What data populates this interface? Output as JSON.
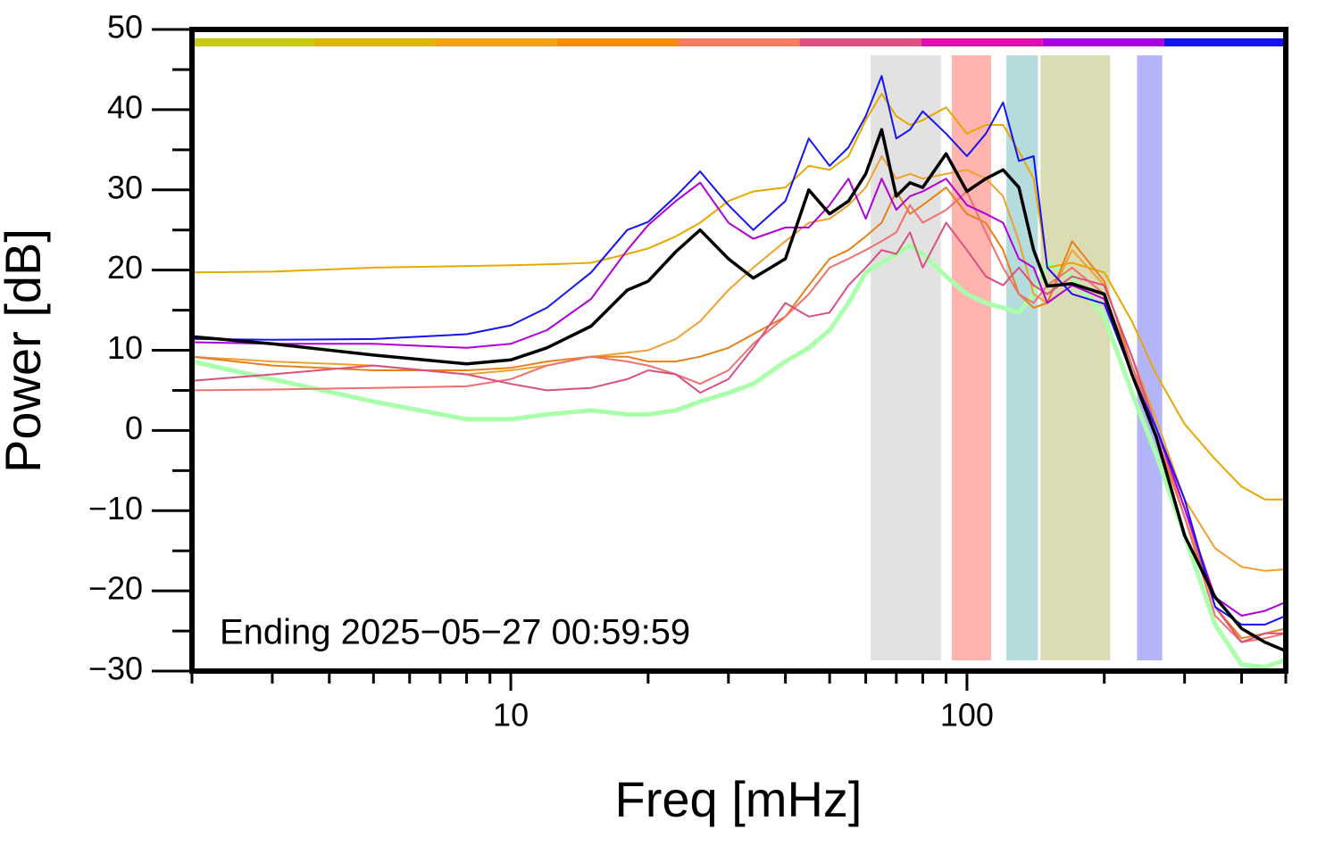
{
  "chart_data": {
    "type": "line",
    "x_label": "Freq [mHz]",
    "y_label": "Power [dB]",
    "annotation": "Ending 2025−05−27 00:59:59",
    "log_x": true,
    "xlim": [
      2,
      500
    ],
    "xticks": [
      10,
      100
    ],
    "xminor_ticks": [
      2,
      3,
      4,
      5,
      6,
      7,
      8,
      9,
      20,
      30,
      40,
      50,
      60,
      70,
      80,
      90,
      200,
      300,
      400,
      500
    ],
    "ylim": [
      -30,
      50
    ],
    "yticks": [
      {
        "value": -30,
        "label": "−30"
      },
      {
        "value": -20,
        "label": "−20"
      },
      {
        "value": -10,
        "label": "−10"
      },
      0,
      10,
      20,
      30,
      40,
      50
    ],
    "yminor_ticks": [
      -25,
      -15,
      -5,
      5,
      15,
      25,
      35,
      45
    ],
    "color_bar": [
      "#c8cc10",
      "#dcb40c",
      "#f0a01a",
      "#f58c10",
      "#fa7a60",
      "#dc5080",
      "#dc10b0",
      "#a800dc",
      "#1414f0"
    ],
    "bands": [
      {
        "x": [
          61.5,
          87.7
        ],
        "color": "#e2e2e2"
      },
      {
        "x": [
          92.6,
          113
        ],
        "color": "#ffb4b0"
      },
      {
        "x": [
          122,
          143
        ],
        "color": "#b4dcdc"
      },
      {
        "x": [
          145,
          206
        ],
        "color": "#dcdcb4"
      },
      {
        "x": [
          236,
          268
        ],
        "color": "#b4b4fa"
      }
    ],
    "x": [
      2,
      3,
      5,
      8,
      10,
      12,
      15,
      18,
      20,
      23,
      26,
      30,
      34,
      40,
      45,
      50,
      55,
      60,
      65,
      70,
      75,
      80,
      90,
      100,
      110,
      120,
      130,
      140,
      150,
      170,
      200,
      230,
      260,
      300,
      350,
      400,
      450,
      500
    ],
    "series": [
      {
        "color": "#aaffaa",
        "width": 5,
        "values": [
          8.6,
          6.4,
          3.6,
          1.4,
          1.4,
          2.0,
          2.5,
          2.0,
          2.0,
          2.5,
          3.6,
          4.7,
          5.8,
          8.6,
          10.3,
          12.5,
          15.9,
          19.7,
          20.9,
          22.0,
          23.1,
          22.0,
          19.2,
          17.0,
          15.9,
          15.3,
          14.7,
          17.0,
          20.9,
          19.2,
          14.2,
          4.7,
          -3.0,
          -13.1,
          -24.2,
          -29.2,
          -29.5,
          -28.6
        ]
      },
      {
        "color": "#e8a800",
        "width": 2,
        "values": [
          19.7,
          19.8,
          20.3,
          20.5,
          20.6,
          20.7,
          20.9,
          22.0,
          22.7,
          24.2,
          25.9,
          28.6,
          29.8,
          30.3,
          33.0,
          32.5,
          34.2,
          38.7,
          42.0,
          39.2,
          38.1,
          38.7,
          40.3,
          37.0,
          38.1,
          38.1,
          34.8,
          31.4,
          20.3,
          20.9,
          19.7,
          13.6,
          7.0,
          0.8,
          -3.6,
          -7.0,
          -8.6,
          -8.6
        ]
      },
      {
        "color": "#f0a030",
        "width": 2,
        "values": [
          9.2,
          8.6,
          8.1,
          7.0,
          7.5,
          8.1,
          9.2,
          9.7,
          10.0,
          11.4,
          13.6,
          17.5,
          20.3,
          23.6,
          25.9,
          26.4,
          28.1,
          30.3,
          34.2,
          31.4,
          32.0,
          31.4,
          32.0,
          32.5,
          31.4,
          29.2,
          23.6,
          17.0,
          15.9,
          22.5,
          18.1,
          9.2,
          1.4,
          -8.6,
          -14.7,
          -17.0,
          -17.5,
          -17.3
        ]
      },
      {
        "color": "#e8801a",
        "width": 2,
        "values": [
          9.2,
          8.1,
          7.5,
          7.5,
          7.8,
          8.6,
          9.2,
          9.2,
          8.6,
          8.6,
          9.2,
          10.3,
          12.0,
          14.2,
          18.1,
          21.4,
          22.5,
          24.2,
          25.9,
          29.8,
          27.0,
          28.1,
          30.3,
          27.0,
          25.9,
          22.5,
          17.0,
          15.3,
          15.9,
          23.6,
          18.6,
          8.1,
          -0.8,
          -10.8,
          -22.0,
          -25.9,
          -25.3,
          -24.7
        ]
      },
      {
        "color": "#f07070",
        "width": 2,
        "values": [
          5.0,
          5.1,
          5.3,
          5.5,
          6.4,
          8.1,
          9.2,
          8.6,
          8.1,
          7.0,
          5.8,
          7.5,
          10.8,
          14.2,
          17.0,
          20.3,
          21.4,
          22.5,
          23.6,
          24.7,
          28.1,
          25.9,
          27.5,
          29.8,
          24.7,
          20.3,
          17.0,
          15.9,
          18.1,
          20.3,
          17.0,
          8.1,
          0.3,
          -10.8,
          -23.1,
          -26.4,
          -25.9,
          -25.3
        ]
      },
      {
        "color": "#d85080",
        "width": 2,
        "values": [
          6.2,
          7.0,
          8.1,
          7.0,
          5.8,
          5.0,
          5.3,
          6.4,
          7.5,
          7.0,
          4.7,
          6.4,
          10.3,
          15.9,
          14.2,
          14.7,
          18.1,
          20.3,
          22.5,
          22.0,
          24.7,
          20.3,
          25.9,
          22.5,
          19.2,
          18.1,
          20.3,
          18.1,
          17.0,
          19.2,
          18.1,
          9.2,
          0.3,
          -9.7,
          -22.0,
          -26.4,
          -25.3,
          -25.3
        ]
      },
      {
        "color": "#b000d8",
        "width": 2,
        "values": [
          11.0,
          10.8,
          10.8,
          10.3,
          10.8,
          12.5,
          16.4,
          22.5,
          25.6,
          28.6,
          30.9,
          25.9,
          23.9,
          25.3,
          25.3,
          28.1,
          31.4,
          26.4,
          31.4,
          27.5,
          29.2,
          29.8,
          31.4,
          28.1,
          27.0,
          25.9,
          21.4,
          20.3,
          15.9,
          18.1,
          16.4,
          7.0,
          0.3,
          -9.7,
          -20.8,
          -23.1,
          -22.5,
          -21.4
        ]
      },
      {
        "color": "#1414f0",
        "width": 2,
        "values": [
          11.4,
          11.3,
          11.4,
          12.0,
          13.1,
          15.3,
          19.7,
          25.0,
          26.0,
          29.2,
          32.3,
          28.1,
          25.0,
          28.6,
          36.4,
          33.0,
          35.3,
          39.2,
          44.2,
          36.4,
          37.5,
          39.8,
          37.0,
          34.2,
          37.0,
          40.9,
          33.6,
          34.2,
          20.3,
          17.0,
          15.8,
          7.0,
          0.3,
          -8.6,
          -22.0,
          -24.2,
          -24.2,
          -23.1
        ]
      },
      {
        "color": "#000000",
        "width": 3.5,
        "values": [
          11.7,
          10.8,
          9.4,
          8.3,
          8.8,
          10.3,
          13.0,
          17.5,
          18.6,
          22.3,
          25.0,
          21.4,
          19.0,
          21.4,
          30.0,
          27.0,
          28.6,
          32.0,
          37.5,
          29.2,
          30.9,
          30.3,
          34.5,
          29.8,
          31.4,
          32.5,
          30.3,
          22.5,
          18.0,
          18.3,
          17.0,
          7.0,
          -0.8,
          -13.1,
          -20.8,
          -24.7,
          -26.4,
          -27.5
        ]
      }
    ]
  }
}
